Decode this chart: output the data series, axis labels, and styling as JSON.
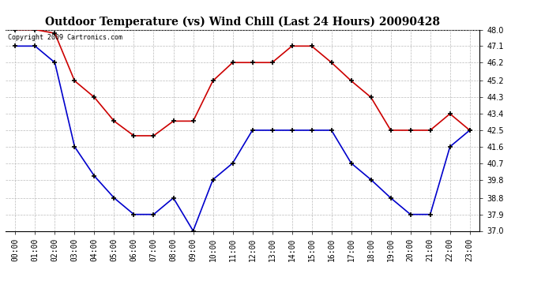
{
  "title": "Outdoor Temperature (vs) Wind Chill (Last 24 Hours) 20090428",
  "copyright_text": "Copyright 2009 Cartronics.com",
  "x_labels": [
    "00:00",
    "01:00",
    "02:00",
    "03:00",
    "04:00",
    "05:00",
    "06:00",
    "07:00",
    "08:00",
    "09:00",
    "10:00",
    "11:00",
    "12:00",
    "13:00",
    "14:00",
    "15:00",
    "16:00",
    "17:00",
    "18:00",
    "19:00",
    "20:00",
    "21:00",
    "22:00",
    "23:00"
  ],
  "red_data": [
    48.0,
    48.0,
    47.8,
    45.2,
    44.3,
    43.0,
    42.2,
    42.2,
    43.0,
    43.0,
    45.2,
    46.2,
    46.2,
    46.2,
    47.1,
    47.1,
    46.2,
    45.2,
    44.3,
    42.5,
    42.5,
    42.5,
    43.4,
    42.5
  ],
  "blue_data": [
    47.1,
    47.1,
    46.2,
    41.6,
    40.0,
    38.8,
    37.9,
    37.9,
    38.8,
    37.0,
    39.8,
    40.7,
    42.5,
    42.5,
    42.5,
    42.5,
    42.5,
    40.7,
    39.8,
    38.8,
    37.9,
    37.9,
    41.6,
    42.5
  ],
  "red_color": "#cc0000",
  "blue_color": "#0000cc",
  "ylim": [
    37.0,
    48.0
  ],
  "yticks": [
    37.0,
    37.9,
    38.8,
    39.8,
    40.7,
    41.6,
    42.5,
    43.4,
    44.3,
    45.2,
    46.2,
    47.1,
    48.0
  ],
  "background_color": "#ffffff",
  "grid_color": "#bbbbbb",
  "title_fontsize": 10,
  "tick_fontsize": 7,
  "copyright_fontsize": 6,
  "marker": "+",
  "marker_size": 5,
  "marker_edge_width": 1.2,
  "line_width": 1.2
}
